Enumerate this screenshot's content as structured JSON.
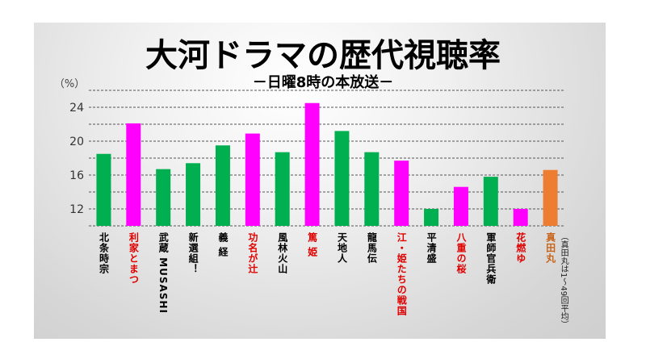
{
  "chart_data": {
    "type": "bar",
    "title": "大河ドラマの歴代視聴率",
    "subtitle": "－日曜8時の本放送－",
    "ylabel": "（%）",
    "ylim": [
      10,
      26
    ],
    "yticks": [
      12,
      16,
      20,
      24
    ],
    "grid": true,
    "grid_step": 2,
    "categories": [
      "北条時宗",
      "利家とまつ",
      "武蔵 MUSASHI",
      "新選組！",
      "義 経",
      "功名が辻",
      "風林火山",
      "篤 姫",
      "天地人",
      "龍馬伝",
      "江・姫たちの戦国",
      "平清盛",
      "八重の桜",
      "軍師官兵衛",
      "花燃ゆ",
      "真田丸"
    ],
    "values": [
      18.5,
      22.1,
      16.7,
      17.4,
      19.5,
      20.9,
      18.7,
      24.5,
      21.2,
      18.7,
      17.7,
      12.0,
      14.6,
      15.8,
      12.0,
      16.6
    ],
    "bar_colors": [
      "#00b050",
      "#ff00ff",
      "#00b050",
      "#00b050",
      "#00b050",
      "#ff00ff",
      "#00b050",
      "#ff00ff",
      "#00b050",
      "#00b050",
      "#ff00ff",
      "#00b050",
      "#ff00ff",
      "#00b050",
      "#ff00ff",
      "#ed7d31"
    ],
    "label_colors": [
      "#000000",
      "#e00000",
      "#000000",
      "#000000",
      "#000000",
      "#e00000",
      "#000000",
      "#e00000",
      "#000000",
      "#000000",
      "#e00000",
      "#000000",
      "#e00000",
      "#000000",
      "#e00000",
      "#c8651b"
    ],
    "annotation": "（真田丸は1～49回平均）"
  }
}
